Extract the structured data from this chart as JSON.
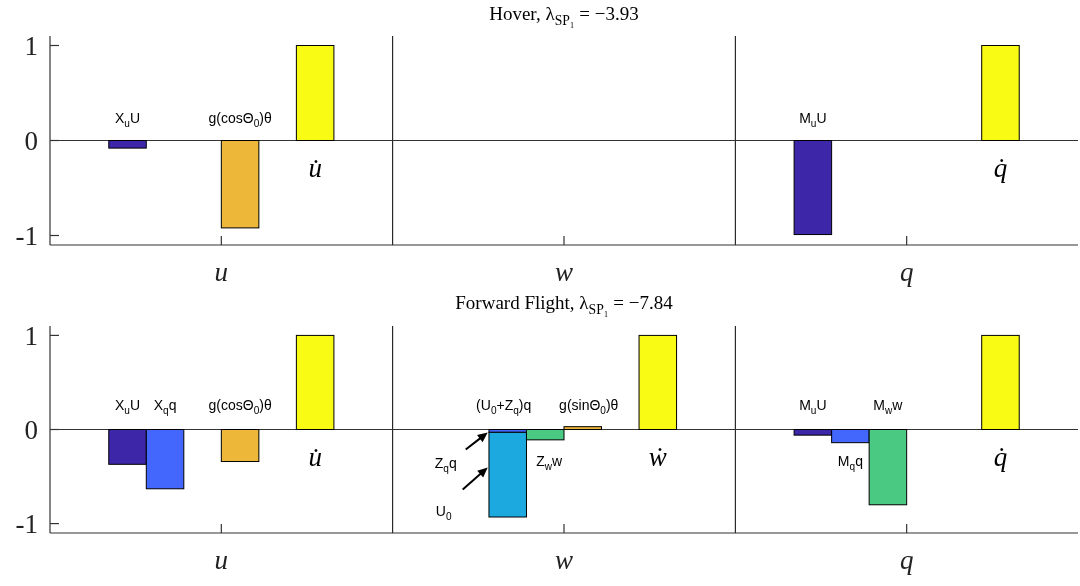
{
  "chart_data": [
    {
      "type": "bar",
      "title": "Hover, λ$_{SP₁}$ = −3.93",
      "categories": [
        "u",
        "w",
        "q"
      ],
      "ylim": [
        -1.1,
        1.1
      ],
      "yticks": [
        -1,
        0,
        1
      ],
      "series": [
        {
          "color": "#3e26a8",
          "values": [
            -0.08,
            0,
            -0.99
          ]
        },
        {
          "color": "#4367fd",
          "values": [
            0,
            0,
            0
          ]
        },
        {
          "color": "#4ac982",
          "values": [
            0,
            0,
            0
          ]
        },
        {
          "color": "#edb83a",
          "values": [
            -0.92,
            0,
            0
          ]
        },
        {
          "color": "#d8ba32",
          "values": [
            0,
            0,
            0
          ]
        },
        {
          "color": "#f9fb15",
          "values": [
            1,
            0,
            1
          ]
        }
      ],
      "ref_lines": [
        {
          "axis": "y",
          "value": 0
        }
      ],
      "annotations": [
        "X$_{u}$U",
        "g(cosΘ$_{0}$)θ",
        "u̇",
        "M$_{u}$U",
        "q̇"
      ]
    },
    {
      "type": "bar",
      "title": "Forward Flight, λ$_{SP₁}$ = −7.84",
      "categories": [
        "u",
        "w",
        "q"
      ],
      "ylim": [
        -1.1,
        1.1
      ],
      "yticks": [
        -1,
        0,
        1
      ],
      "series": [
        {
          "color": "#3e26a8",
          "values": [
            -0.37,
            0,
            -0.06
          ]
        },
        {
          "color": "#4367fd",
          "values": [
            -0.63,
            -0.03,
            -0.14
          ]
        },
        {
          "color": "#1ca9df",
          "values": [
            null,
            -0.9,
            null
          ],
          "base": [
            null,
            -0.03,
            null
          ]
        },
        {
          "color": "#4ac982",
          "values": [
            0,
            -0.11,
            -0.8
          ]
        },
        {
          "color": "#edb83a",
          "values": [
            -0.34,
            0.03,
            0
          ]
        },
        {
          "color": "#d8ba32",
          "values": [
            0,
            0,
            0
          ]
        },
        {
          "color": "#f9fb15",
          "values": [
            1,
            1,
            1
          ]
        }
      ],
      "ref_lines": [
        {
          "axis": "y",
          "value": 0
        }
      ],
      "annotations": [
        "X$_{u}$U",
        "X$_{q}$q",
        "g(cosΘ$_{0}$)θ",
        "u̇",
        "(U$_{0}$+Z$_{q}$)q",
        "Z$_{q}$q",
        "U$_{0}$",
        "g(sinΘ$_{0}$)θ",
        "Z$_{w}$w",
        "ẇ",
        "M$_{u}$U",
        "M$_{q}$q",
        "M$_{w}$w",
        "q̇"
      ]
    }
  ]
}
